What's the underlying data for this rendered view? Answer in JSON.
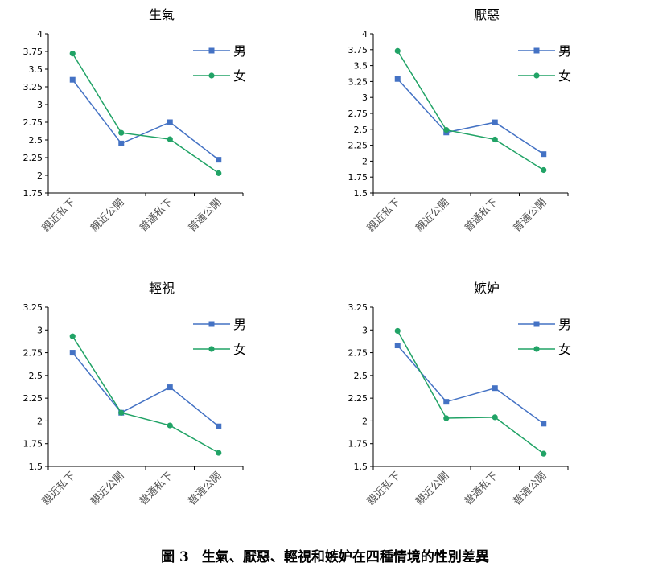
{
  "figure": {
    "caption_number": "圖 3",
    "caption_text": "生氣、厭惡、輕視和嫉妒在四種情境的性別差異"
  },
  "series_colors": {
    "男": "#4472C4",
    "女": "#21A366"
  },
  "chart_data": [
    {
      "type": "line",
      "title": "生氣",
      "categories": [
        "親近私下",
        "親近公開",
        "普通私下",
        "普通公開"
      ],
      "series": [
        {
          "name": "男",
          "marker": "square",
          "values": [
            3.35,
            2.45,
            2.75,
            2.22
          ]
        },
        {
          "name": "女",
          "marker": "circle",
          "values": [
            3.72,
            2.6,
            2.51,
            2.03
          ]
        }
      ],
      "ylim": [
        1.75,
        4
      ],
      "yticks": [
        "4",
        "3.75",
        "3.5",
        "3.25",
        "3",
        "2.75",
        "2.5",
        "2.25",
        "2",
        "1.75"
      ],
      "xlabel": "",
      "ylabel": "",
      "grid": false,
      "legend": "top-right"
    },
    {
      "type": "line",
      "title": "厭惡",
      "categories": [
        "親近私下",
        "親近公開",
        "普通私下",
        "普通公開"
      ],
      "series": [
        {
          "name": "男",
          "marker": "square",
          "values": [
            3.29,
            2.45,
            2.61,
            2.11
          ]
        },
        {
          "name": "女",
          "marker": "circle",
          "values": [
            3.73,
            2.49,
            2.34,
            1.86
          ]
        }
      ],
      "ylim": [
        1.5,
        4
      ],
      "yticks": [
        "4",
        "3.75",
        "3.5",
        "3.25",
        "3",
        "2.75",
        "2.5",
        "2.25",
        "2",
        "1.75",
        "1.5"
      ],
      "xlabel": "",
      "ylabel": "",
      "grid": false,
      "legend": "top-right"
    },
    {
      "type": "line",
      "title": "輕視",
      "categories": [
        "親近私下",
        "親近公開",
        "普通私下",
        "普通公開"
      ],
      "series": [
        {
          "name": "男",
          "marker": "square",
          "values": [
            2.75,
            2.09,
            2.37,
            1.94
          ]
        },
        {
          "name": "女",
          "marker": "circle",
          "values": [
            2.93,
            2.09,
            1.95,
            1.65
          ]
        }
      ],
      "ylim": [
        1.5,
        3.25
      ],
      "yticks": [
        "3.25",
        "3",
        "2.75",
        "2.5",
        "2.25",
        "2",
        "1.75",
        "1.5"
      ],
      "xlabel": "",
      "ylabel": "",
      "grid": false,
      "legend": "top-right"
    },
    {
      "type": "line",
      "title": "嫉妒",
      "categories": [
        "親近私下",
        "親近公開",
        "普通私下",
        "普通公開"
      ],
      "series": [
        {
          "name": "男",
          "marker": "square",
          "values": [
            2.83,
            2.21,
            2.36,
            1.97
          ]
        },
        {
          "name": "女",
          "marker": "circle",
          "values": [
            2.99,
            2.03,
            2.04,
            1.64
          ]
        }
      ],
      "ylim": [
        1.5,
        3.25
      ],
      "yticks": [
        "3.25",
        "3",
        "2.75",
        "2.5",
        "2.25",
        "2",
        "1.75",
        "1.5"
      ],
      "xlabel": "",
      "ylabel": "",
      "grid": false,
      "legend": "top-right"
    }
  ]
}
